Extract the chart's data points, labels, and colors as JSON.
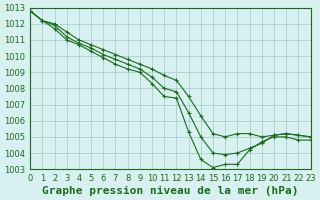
{
  "title": "Graphe pression niveau de la mer (hPa)",
  "x_labels": [
    "0",
    "1",
    "2",
    "3",
    "4",
    "5",
    "6",
    "7",
    "8",
    "9",
    "10",
    "11",
    "12",
    "13",
    "14",
    "15",
    "16",
    "17",
    "18",
    "19",
    "20",
    "21",
    "22",
    "23"
  ],
  "xlim": [
    0,
    23
  ],
  "ylim": [
    1003,
    1013
  ],
  "yticks": [
    1003,
    1004,
    1005,
    1006,
    1007,
    1008,
    1009,
    1010,
    1011,
    1012,
    1013
  ],
  "bg_color": "#d8f0f0",
  "grid_color": "#a0c8c8",
  "line_color": "#1a6b1a",
  "marker_color": "#1a6b1a",
  "line1": [
    1012.8,
    1012.2,
    1011.7,
    1011.0,
    1010.7,
    1010.3,
    1009.9,
    1009.5,
    1009.2,
    1009.0,
    1008.3,
    1007.5,
    1007.4,
    1005.3,
    1003.6,
    1003.1,
    1003.3,
    1003.3,
    1004.2,
    1004.7,
    1005.0,
    1005.0,
    1004.8,
    1004.8
  ],
  "line2": [
    1012.8,
    1012.2,
    1011.9,
    1011.2,
    1010.8,
    1010.5,
    1010.1,
    1009.8,
    1009.5,
    1009.2,
    1008.7,
    1008.0,
    1007.8,
    1006.5,
    1005.0,
    1004.0,
    1003.9,
    1004.0,
    1004.3,
    1004.6,
    1005.1,
    1005.2,
    1005.1,
    1005.0
  ],
  "line3": [
    1012.8,
    1012.2,
    1012.0,
    1011.5,
    1011.0,
    1010.7,
    1010.4,
    1010.1,
    1009.8,
    1009.5,
    1009.2,
    1008.8,
    1008.5,
    1007.5,
    1006.3,
    1005.2,
    1005.0,
    1005.2,
    1005.2,
    1005.0,
    1005.1,
    1005.2,
    1005.1,
    1005.0
  ],
  "title_fontsize": 8,
  "tick_fontsize": 6
}
